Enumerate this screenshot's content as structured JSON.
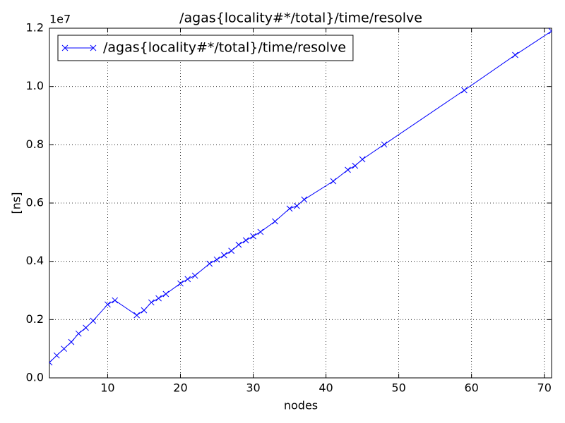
{
  "chart_data": {
    "type": "line",
    "title": "/agas{locality#*/total}/time/resolve",
    "xlabel": "nodes",
    "ylabel": "[ns]",
    "y_offset_label": "1e7",
    "x": [
      2,
      3,
      4,
      5,
      6,
      7,
      8,
      10,
      11,
      14,
      15,
      16,
      17,
      18,
      20,
      21,
      22,
      24,
      25,
      26,
      27,
      28,
      29,
      30,
      31,
      33,
      35,
      36,
      37,
      41,
      43,
      44,
      45,
      48,
      59,
      66,
      71
    ],
    "series": [
      {
        "name": "/agas{locality#*/total}/time/resolve",
        "color": "#0000ff",
        "values": [
          0.053,
          0.077,
          0.1,
          0.123,
          0.152,
          0.172,
          0.196,
          0.252,
          0.266,
          0.215,
          0.232,
          0.259,
          0.273,
          0.288,
          0.324,
          0.339,
          0.351,
          0.392,
          0.406,
          0.421,
          0.436,
          0.457,
          0.472,
          0.486,
          0.501,
          0.537,
          0.581,
          0.59,
          0.612,
          0.675,
          0.714,
          0.728,
          0.75,
          0.801,
          0.987,
          1.108,
          1.19
        ]
      }
    ],
    "xlim": [
      2,
      71
    ],
    "xticks": [
      10,
      20,
      30,
      40,
      50,
      60,
      70
    ],
    "ylim": [
      0,
      1.2
    ],
    "yticks": [
      {
        "value": 0,
        "label": "0.0"
      },
      0.2,
      0.4,
      0.6,
      0.8,
      {
        "value": 1,
        "label": "1.0"
      },
      1.2
    ],
    "grid": true,
    "legend": "upper left"
  }
}
